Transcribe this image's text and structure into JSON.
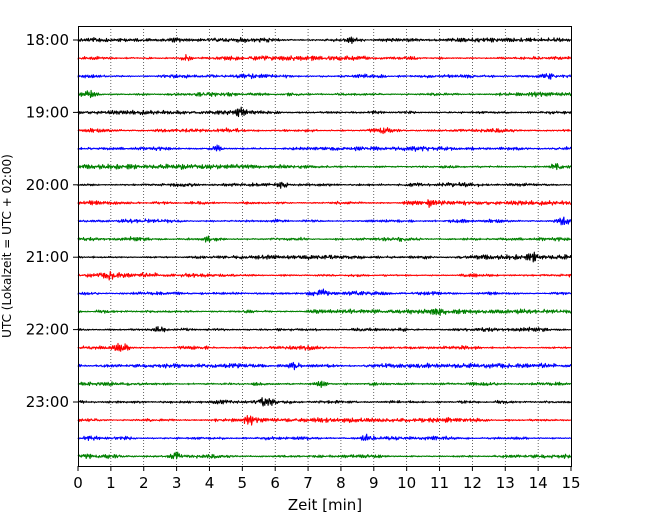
{
  "chart_data": {
    "type": "line",
    "title": "",
    "xlabel": "Zeit  [min]",
    "ylabel": "UTC (Lokalzeit = UTC + 02:00)",
    "xlim": [
      0,
      15
    ],
    "x_ticks": [
      0,
      1,
      2,
      3,
      4,
      5,
      6,
      7,
      8,
      9,
      10,
      11,
      12,
      13,
      14,
      15
    ],
    "y_ticks": [
      "18:00",
      "19:00",
      "20:00",
      "21:00",
      "22:00",
      "23:00"
    ],
    "grid": "vertical dotted lines at each minute",
    "trace_interval_min": 15,
    "rows": 24,
    "trace_colors": [
      "#000000",
      "#ff0000",
      "#0000ff",
      "#008000"
    ],
    "series": [
      {
        "start": "18:00",
        "color": "#000000",
        "bursts": [
          8.3
        ]
      },
      {
        "start": "18:15",
        "color": "#ff0000",
        "bursts": [
          3.3
        ]
      },
      {
        "start": "18:30",
        "color": "#0000ff",
        "bursts": [
          14.3
        ]
      },
      {
        "start": "18:45",
        "color": "#008000",
        "bursts": [
          0.3
        ]
      },
      {
        "start": "19:00",
        "color": "#000000",
        "bursts": [
          5.0
        ]
      },
      {
        "start": "19:15",
        "color": "#ff0000",
        "bursts": [
          9.3
        ]
      },
      {
        "start": "19:30",
        "color": "#0000ff",
        "bursts": [
          4.2
        ]
      },
      {
        "start": "19:45",
        "color": "#008000",
        "bursts": [
          14.5
        ]
      },
      {
        "start": "20:00",
        "color": "#000000",
        "bursts": [
          6.2
        ]
      },
      {
        "start": "20:15",
        "color": "#ff0000",
        "bursts": [
          10.7
        ]
      },
      {
        "start": "20:30",
        "color": "#0000ff",
        "bursts": [
          14.8
        ]
      },
      {
        "start": "20:45",
        "color": "#008000",
        "bursts": [
          4.0
        ]
      },
      {
        "start": "21:00",
        "color": "#000000",
        "bursts": [
          13.9
        ]
      },
      {
        "start": "21:15",
        "color": "#ff0000",
        "bursts": [
          1.0
        ]
      },
      {
        "start": "21:30",
        "color": "#0000ff",
        "bursts": [
          7.4
        ]
      },
      {
        "start": "21:45",
        "color": "#008000",
        "bursts": [
          10.9
        ]
      },
      {
        "start": "22:00",
        "color": "#000000",
        "bursts": [
          2.5
        ]
      },
      {
        "start": "22:15",
        "color": "#ff0000",
        "bursts": [
          1.3
        ]
      },
      {
        "start": "22:30",
        "color": "#0000ff",
        "bursts": [
          6.6
        ]
      },
      {
        "start": "22:45",
        "color": "#008000",
        "bursts": [
          7.4
        ]
      },
      {
        "start": "23:00",
        "color": "#000000",
        "bursts": [
          5.7
        ]
      },
      {
        "start": "23:15",
        "color": "#ff0000",
        "bursts": [
          5.2
        ]
      },
      {
        "start": "23:30",
        "color": "#0000ff",
        "bursts": [
          8.8
        ]
      },
      {
        "start": "23:45",
        "color": "#008000",
        "bursts": [
          3.0
        ]
      }
    ]
  }
}
